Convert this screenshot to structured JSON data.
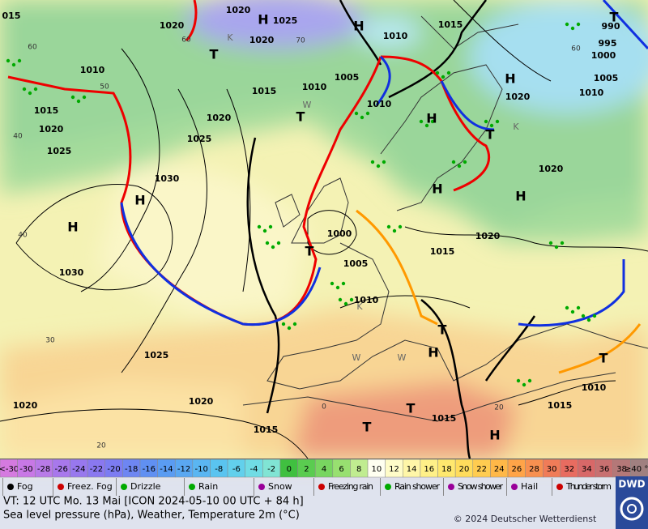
{
  "map": {
    "pressure_labels": [
      "015",
      "1020",
      "1020",
      "1025",
      "1020",
      "1015",
      "1010",
      "990",
      "995",
      "1000",
      "1005",
      "1010",
      "1010",
      "1015",
      "1020",
      "1025",
      "1015",
      "1010",
      "1005",
      "1010",
      "1020",
      "1025",
      "1030",
      "1020",
      "1020",
      "1020",
      "1000",
      "1005",
      "1015",
      "1010",
      "1030",
      "1025",
      "1020",
      "1020",
      "1015",
      "1015",
      "1015",
      "1010"
    ],
    "grid_labels": [
      "60",
      "70",
      "60",
      "50",
      "40",
      "40",
      "30",
      "20",
      "0",
      "20",
      "60"
    ],
    "centers": [
      "H",
      "H",
      "H",
      "H",
      "H",
      "H",
      "H",
      "H",
      "H",
      "H",
      "T",
      "T",
      "T",
      "T",
      "T",
      "T",
      "T",
      "T",
      "T"
    ],
    "minor_labels": [
      "K",
      "K",
      "K",
      "W",
      "W",
      "W"
    ]
  },
  "legend": {
    "temperature_scale": [
      "<-30",
      "-30",
      "-28",
      "-26",
      "-24",
      "-22",
      "-20",
      "-18",
      "-16",
      "-14",
      "-12",
      "-10",
      "-8",
      "-6",
      "-4",
      "-2",
      "0",
      "2",
      "4",
      "6",
      "8",
      "10",
      "12",
      "14",
      "16",
      "18",
      "20",
      "22",
      "24",
      "26",
      "28",
      "30",
      "32",
      "34",
      "36",
      "38",
      "≥40 °C"
    ],
    "weather": [
      "Fog",
      "Freez. Fog",
      "Drizzle",
      "Rain",
      "Snow",
      "Freezing rain",
      "Rain shower",
      "Snow shower",
      "Hail",
      "Thunder storm"
    ]
  },
  "footer": {
    "valid_time": "VT: 12 UTC Mo.  13 Mai [ICON 2024-05-10  00 UTC + 84 h]",
    "description": "Sea level pressure (hPa), Weather, Temperature 2m (°C)",
    "copyright": "© 2024 Deutscher Wetterdienst",
    "logo": "DWD"
  }
}
